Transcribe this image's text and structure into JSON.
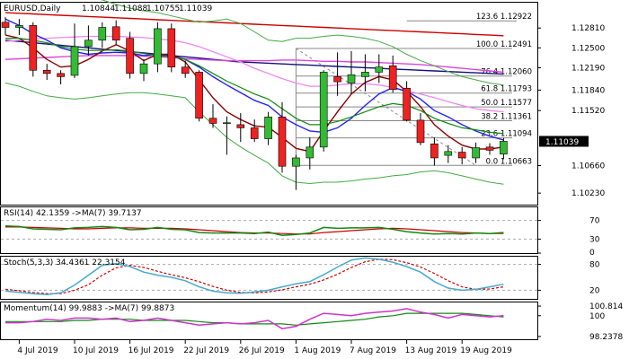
{
  "chart_data": {
    "type": "candlestick",
    "header": {
      "symbol": "EURUSD,Daily",
      "ohlc": [
        "1.10844",
        "1.11088",
        "1.10755",
        "1.11039"
      ]
    },
    "colors": {
      "bull": "#33bb33",
      "bear": "#ee2222",
      "wick": "#000000",
      "ma_red": "#cc0000",
      "ma_navy": "#111177",
      "ma_magenta": "#dd44dd",
      "ma_orchid": "#ee88ee",
      "ma_blue": "#2222ee",
      "ma_darkred": "#880000",
      "ma_green": "#118811",
      "band": "#44aa44",
      "fib": "#888888",
      "osc_main": "#44aacc",
      "osc_signal": "#cc0000",
      "rsi_main": "#118811",
      "mom_main": "#cc33cc",
      "mom_signal": "#118811",
      "price_box": "#000000"
    },
    "dates": [
      "3 Jul",
      "4 Jul",
      "5 Jul",
      "8 Jul",
      "9 Jul",
      "10 Jul",
      "11 Jul",
      "12 Jul",
      "15 Jul",
      "16 Jul",
      "17 Jul",
      "18 Jul",
      "19 Jul",
      "22 Jul",
      "23 Jul",
      "24 Jul",
      "25 Jul",
      "26 Jul",
      "29 Jul",
      "30 Jul",
      "31 Jul",
      "1 Aug",
      "2 Aug",
      "5 Aug",
      "6 Aug",
      "7 Aug",
      "8 Aug",
      "9 Aug",
      "12 Aug",
      "13 Aug",
      "14 Aug",
      "15 Aug",
      "16 Aug",
      "19 Aug",
      "20 Aug",
      "21 Aug",
      "22 Aug"
    ],
    "x_tick_labels": [
      "4 Jul 2019",
      "10 Jul 2019",
      "16 Jul 2019",
      "22 Jul 2019",
      "26 Jul 2019",
      "1 Aug 2019",
      "7 Aug 2019",
      "13 Aug 2019",
      "19 Aug 2019"
    ],
    "x_tick_index": [
      1,
      5,
      9,
      13,
      17,
      21,
      25,
      29,
      33
    ],
    "candles": [
      {
        "o": 1.129,
        "h": 1.1298,
        "l": 1.127,
        "c": 1.1282
      },
      {
        "o": 1.1282,
        "h": 1.1295,
        "l": 1.127,
        "c": 1.1285
      },
      {
        "o": 1.1285,
        "h": 1.129,
        "l": 1.1205,
        "c": 1.1215
      },
      {
        "o": 1.1215,
        "h": 1.1225,
        "l": 1.12,
        "c": 1.121
      },
      {
        "o": 1.121,
        "h": 1.1215,
        "l": 1.1193,
        "c": 1.1205
      },
      {
        "o": 1.1207,
        "h": 1.1288,
        "l": 1.1203,
        "c": 1.1252
      },
      {
        "o": 1.1252,
        "h": 1.1285,
        "l": 1.1238,
        "c": 1.1262
      },
      {
        "o": 1.1262,
        "h": 1.129,
        "l": 1.125,
        "c": 1.1282
      },
      {
        "o": 1.1283,
        "h": 1.1293,
        "l": 1.1255,
        "c": 1.1262
      },
      {
        "o": 1.1265,
        "h": 1.1275,
        "l": 1.1202,
        "c": 1.121
      },
      {
        "o": 1.121,
        "h": 1.1232,
        "l": 1.1198,
        "c": 1.1225
      },
      {
        "o": 1.1225,
        "h": 1.129,
        "l": 1.1212,
        "c": 1.128
      },
      {
        "o": 1.128,
        "h": 1.1288,
        "l": 1.1212,
        "c": 1.122
      },
      {
        "o": 1.122,
        "h": 1.123,
        "l": 1.1203,
        "c": 1.121
      },
      {
        "o": 1.1212,
        "h": 1.1215,
        "l": 1.1135,
        "c": 1.114
      },
      {
        "o": 1.114,
        "h": 1.1162,
        "l": 1.1125,
        "c": 1.1132
      },
      {
        "o": 1.1133,
        "h": 1.1143,
        "l": 1.1083,
        "c": 1.1133
      },
      {
        "o": 1.113,
        "h": 1.1148,
        "l": 1.1103,
        "c": 1.1125
      },
      {
        "o": 1.1125,
        "h": 1.1138,
        "l": 1.1103,
        "c": 1.1108
      },
      {
        "o": 1.1108,
        "h": 1.115,
        "l": 1.1098,
        "c": 1.1142
      },
      {
        "o": 1.1142,
        "h": 1.1165,
        "l": 1.1055,
        "c": 1.1065
      },
      {
        "o": 1.1065,
        "h": 1.1083,
        "l": 1.1028,
        "c": 1.1078
      },
      {
        "o": 1.1078,
        "h": 1.111,
        "l": 1.106,
        "c": 1.1095
      },
      {
        "o": 1.1095,
        "h": 1.1215,
        "l": 1.1088,
        "c": 1.1212
      },
      {
        "o": 1.1205,
        "h": 1.1243,
        "l": 1.1175,
        "c": 1.1197
      },
      {
        "o": 1.1195,
        "h": 1.1245,
        "l": 1.1178,
        "c": 1.1208
      },
      {
        "o": 1.1205,
        "h": 1.124,
        "l": 1.1182,
        "c": 1.1212
      },
      {
        "o": 1.1212,
        "h": 1.124,
        "l": 1.1195,
        "c": 1.122
      },
      {
        "o": 1.1222,
        "h": 1.1238,
        "l": 1.118,
        "c": 1.1185
      },
      {
        "o": 1.1187,
        "h": 1.1198,
        "l": 1.1135,
        "c": 1.1137
      },
      {
        "o": 1.1137,
        "h": 1.1148,
        "l": 1.1098,
        "c": 1.1102
      },
      {
        "o": 1.11,
        "h": 1.111,
        "l": 1.1066,
        "c": 1.1078
      },
      {
        "o": 1.1082,
        "h": 1.1098,
        "l": 1.107,
        "c": 1.1088
      },
      {
        "o": 1.1087,
        "h": 1.1095,
        "l": 1.1068,
        "c": 1.1078
      },
      {
        "o": 1.1078,
        "h": 1.1102,
        "l": 1.107,
        "c": 1.1094
      },
      {
        "o": 1.1095,
        "h": 1.1101,
        "l": 1.1083,
        "c": 1.109
      },
      {
        "o": 1.1084,
        "h": 1.1109,
        "l": 1.1076,
        "c": 1.1104
      }
    ],
    "overlays": [
      {
        "key": "ma_red",
        "width": 1.4,
        "values": [
          1.1305,
          1.1304,
          1.1303,
          1.1302,
          1.1301,
          1.13,
          1.1299,
          1.1298,
          1.1297,
          1.1296,
          1.1295,
          1.1294,
          1.1293,
          1.1292,
          1.1291,
          1.129,
          1.1289,
          1.1288,
          1.1287,
          1.1286,
          1.1285,
          1.1284,
          1.1283,
          1.1282,
          1.1281,
          1.128,
          1.1279,
          1.1278,
          1.1277,
          1.1276,
          1.1275,
          1.1274,
          1.1273,
          1.1272,
          1.1271,
          1.127,
          1.1269
        ]
      },
      {
        "key": "ma_navy",
        "width": 1.4,
        "values": [
          1.1262,
          1.126,
          1.1258,
          1.1256,
          1.1254,
          1.1252,
          1.125,
          1.1248,
          1.1246,
          1.1244,
          1.1242,
          1.124,
          1.1238,
          1.1236,
          1.1234,
          1.1232,
          1.123,
          1.1228,
          1.1227,
          1.1226,
          1.1225,
          1.1224,
          1.1223,
          1.1222,
          1.1221,
          1.122,
          1.1219,
          1.1218,
          1.1217,
          1.1216,
          1.1215,
          1.1214,
          1.1213,
          1.1212,
          1.1211,
          1.121,
          1.1209
        ]
      },
      {
        "key": "ma_magenta",
        "width": 1.4,
        "values": [
          1.1232,
          1.1233,
          1.1234,
          1.1235,
          1.1236,
          1.1237,
          1.1238,
          1.1238,
          1.1238,
          1.1238,
          1.1237,
          1.1236,
          1.1235,
          1.1233,
          1.1232,
          1.1231,
          1.123,
          1.123,
          1.123,
          1.123,
          1.1231,
          1.1231,
          1.123,
          1.1229,
          1.1229,
          1.1228,
          1.1228,
          1.1227,
          1.1226,
          1.1225,
          1.1224,
          1.1222,
          1.122,
          1.1218,
          1.1216,
          1.1214,
          1.1212
        ]
      },
      {
        "key": "ma_orchid",
        "width": 1.3,
        "values": [
          1.126,
          1.1262,
          1.1264,
          1.1265,
          1.1266,
          1.1267,
          1.1268,
          1.1268,
          1.1268,
          1.1267,
          1.1266,
          1.1264,
          1.1262,
          1.1258,
          1.1252,
          1.1244,
          1.1236,
          1.1228,
          1.1218,
          1.121,
          1.1202,
          1.1195,
          1.119,
          1.119,
          1.1192,
          1.1194,
          1.1194,
          1.1192,
          1.1188,
          1.1183,
          1.1178,
          1.1172,
          1.1166,
          1.116,
          1.1155,
          1.1152,
          1.115
        ]
      },
      {
        "key": "ma_blue",
        "width": 1.4,
        "values": [
          1.1295,
          1.1285,
          1.1272,
          1.1262,
          1.125,
          1.1244,
          1.124,
          1.1242,
          1.1243,
          1.1242,
          1.1238,
          1.124,
          1.1238,
          1.1232,
          1.122,
          1.1205,
          1.1192,
          1.118,
          1.1168,
          1.116,
          1.1142,
          1.113,
          1.112,
          1.1118,
          1.1125,
          1.114,
          1.116,
          1.1178,
          1.1188,
          1.1182,
          1.117,
          1.1152,
          1.1142,
          1.113,
          1.112,
          1.1112,
          1.1106
        ]
      },
      {
        "key": "ma_darkred",
        "width": 1.4,
        "values": [
          1.127,
          1.1265,
          1.125,
          1.1232,
          1.122,
          1.1222,
          1.1232,
          1.1245,
          1.1255,
          1.1245,
          1.123,
          1.124,
          1.124,
          1.1228,
          1.12,
          1.1172,
          1.115,
          1.1138,
          1.1128,
          1.1126,
          1.111,
          1.1093,
          1.1088,
          1.112,
          1.115,
          1.1178,
          1.1196,
          1.1205,
          1.12,
          1.1182,
          1.1158,
          1.113,
          1.1112,
          1.1098,
          1.1092,
          1.1092,
          1.1095
        ]
      },
      {
        "key": "ma_green",
        "width": 1.2,
        "values": [
          1.1265,
          1.1265,
          1.1262,
          1.1258,
          1.1252,
          1.1248,
          1.1246,
          1.1246,
          1.1247,
          1.1245,
          1.1241,
          1.1238,
          1.1236,
          1.1232,
          1.1222,
          1.121,
          1.1198,
          1.1188,
          1.1178,
          1.117,
          1.1155,
          1.114,
          1.113,
          1.113,
          1.1135,
          1.1142,
          1.115,
          1.1158,
          1.1163,
          1.116,
          1.1152,
          1.114,
          1.1132,
          1.1125,
          1.1122,
          1.1118,
          1.1116
        ]
      },
      {
        "key": "band",
        "width": 1.0,
        "values": [
          1.134,
          1.1342,
          1.1343,
          1.1342,
          1.134,
          1.1338,
          1.1332,
          1.1325,
          1.1318,
          1.1312,
          1.1308,
          1.1305,
          1.13,
          1.1295,
          1.129,
          1.1292,
          1.1295,
          1.1288,
          1.1275,
          1.1262,
          1.126,
          1.1265,
          1.1265,
          1.1268,
          1.127,
          1.1268,
          1.1265,
          1.126,
          1.1252,
          1.124,
          1.123,
          1.1222,
          1.1213,
          1.1205,
          1.12,
          1.1195,
          1.1192
        ]
      },
      {
        "key": "band",
        "width": 1.0,
        "values": [
          1.1195,
          1.119,
          1.1182,
          1.1175,
          1.1172,
          1.117,
          1.1172,
          1.1175,
          1.1178,
          1.118,
          1.118,
          1.1178,
          1.1175,
          1.1172,
          1.115,
          1.113,
          1.111,
          1.1095,
          1.1082,
          1.107,
          1.105,
          1.104,
          1.1038,
          1.104,
          1.104,
          1.1042,
          1.1045,
          1.1047,
          1.105,
          1.1052,
          1.1056,
          1.1058,
          1.1055,
          1.105,
          1.1045,
          1.104,
          1.1037
        ]
      }
    ],
    "fib": {
      "swing_from_index": 21,
      "swing_to_index": 34,
      "box_index_start": 21,
      "box_index_end": 35,
      "label_index": 29,
      "high": 1.12491,
      "low": 1.10663,
      "levels": [
        {
          "label": "123.6 1.12922",
          "value": 1.12922
        },
        {
          "label": "100.0 1.12491",
          "value": 1.12491
        },
        {
          "label": "76.4 1.12060",
          "value": 1.1206
        },
        {
          "label": "61.8 1.11793",
          "value": 1.11793
        },
        {
          "label": "50.0 1.11577",
          "value": 1.11577
        },
        {
          "label": "38.2 1.11361",
          "value": 1.11361
        },
        {
          "label": "23.6 1.11094",
          "value": 1.11094
        },
        {
          "label": "0.0 1.10663",
          "value": 1.10663
        }
      ]
    },
    "price_axis": {
      "ylim": [
        1.1005,
        1.1322
      ],
      "ticks": [
        "1.12810",
        "1.12500",
        "1.12190",
        "1.11840",
        "1.11520",
        "1.10660",
        "1.10230"
      ],
      "tick_values": [
        1.1281,
        1.125,
        1.1219,
        1.1184,
        1.1152,
        1.1066,
        1.1023
      ],
      "last_price": "1.11039",
      "last_value": 1.11039
    },
    "indicators": {
      "rsi": {
        "label": "RSI(14) 42.1359 ->MA(7) 39.7137",
        "ylim": [
          0,
          100
        ],
        "ticks": [
          "70",
          "30",
          "0"
        ],
        "tick_values": [
          70,
          30,
          0
        ],
        "levels": [
          70,
          30
        ],
        "main": [
          58,
          57,
          52,
          51,
          50,
          54,
          55,
          57,
          55,
          50,
          51,
          55,
          51,
          50,
          44,
          43,
          43,
          43,
          42,
          45,
          38,
          40,
          43,
          55,
          53,
          54,
          54,
          55,
          51,
          46,
          43,
          41,
          42,
          41,
          43,
          42,
          44
        ],
        "signal": [
          56,
          56,
          55,
          54,
          53,
          52,
          52,
          53,
          54,
          54,
          53,
          53,
          53,
          52,
          50,
          48,
          46,
          44,
          43,
          43,
          42,
          41,
          41,
          44,
          46,
          48,
          50,
          52,
          53,
          52,
          50,
          48,
          46,
          44,
          43,
          42,
          42
        ]
      },
      "stoch": {
        "label": "Stoch(5,3,3) 34.4361 22.3154",
        "ylim": [
          0,
          100
        ],
        "ticks": [
          "80",
          "20"
        ],
        "tick_values": [
          80,
          20
        ],
        "levels": [
          80,
          20
        ],
        "main": [
          18,
          15,
          12,
          10,
          14,
          32,
          55,
          78,
          82,
          75,
          62,
          55,
          50,
          42,
          28,
          18,
          14,
          13,
          16,
          20,
          28,
          35,
          40,
          56,
          74,
          90,
          95,
          92,
          85,
          75,
          62,
          40,
          25,
          20,
          22,
          28,
          34
        ],
        "signal": [
          22,
          19,
          15,
          12,
          12,
          20,
          33,
          55,
          72,
          78,
          73,
          64,
          56,
          49,
          40,
          29,
          20,
          15,
          14,
          16,
          21,
          28,
          34,
          44,
          57,
          73,
          86,
          92,
          91,
          84,
          74,
          59,
          42,
          28,
          22,
          23,
          28
        ]
      },
      "momentum": {
        "label": "Momentum(14) 99.9883 ->MA(7) 99.8873",
        "ylim": [
          98.0,
          101.2
        ],
        "ticks": [
          "100.814",
          "100",
          "98.2378"
        ],
        "tick_values": [
          100.814,
          100.0,
          98.2378
        ],
        "main": [
          99.4,
          99.4,
          99.5,
          99.7,
          99.6,
          99.8,
          99.8,
          99.7,
          99.8,
          99.5,
          99.6,
          99.8,
          99.6,
          99.4,
          99.2,
          99.3,
          99.4,
          99.3,
          99.4,
          99.6,
          98.9,
          99.1,
          99.7,
          100.2,
          100.1,
          100.0,
          100.2,
          100.3,
          100.4,
          100.6,
          100.3,
          100.1,
          99.8,
          100.1,
          100.0,
          99.9,
          100.0
        ],
        "signal": [
          99.5,
          99.5,
          99.5,
          99.5,
          99.5,
          99.6,
          99.6,
          99.7,
          99.7,
          99.7,
          99.6,
          99.6,
          99.6,
          99.6,
          99.5,
          99.4,
          99.4,
          99.3,
          99.3,
          99.3,
          99.3,
          99.2,
          99.3,
          99.4,
          99.5,
          99.6,
          99.7,
          99.9,
          100.0,
          100.2,
          100.2,
          100.2,
          100.2,
          100.2,
          100.1,
          100.0,
          99.9
        ]
      }
    }
  }
}
